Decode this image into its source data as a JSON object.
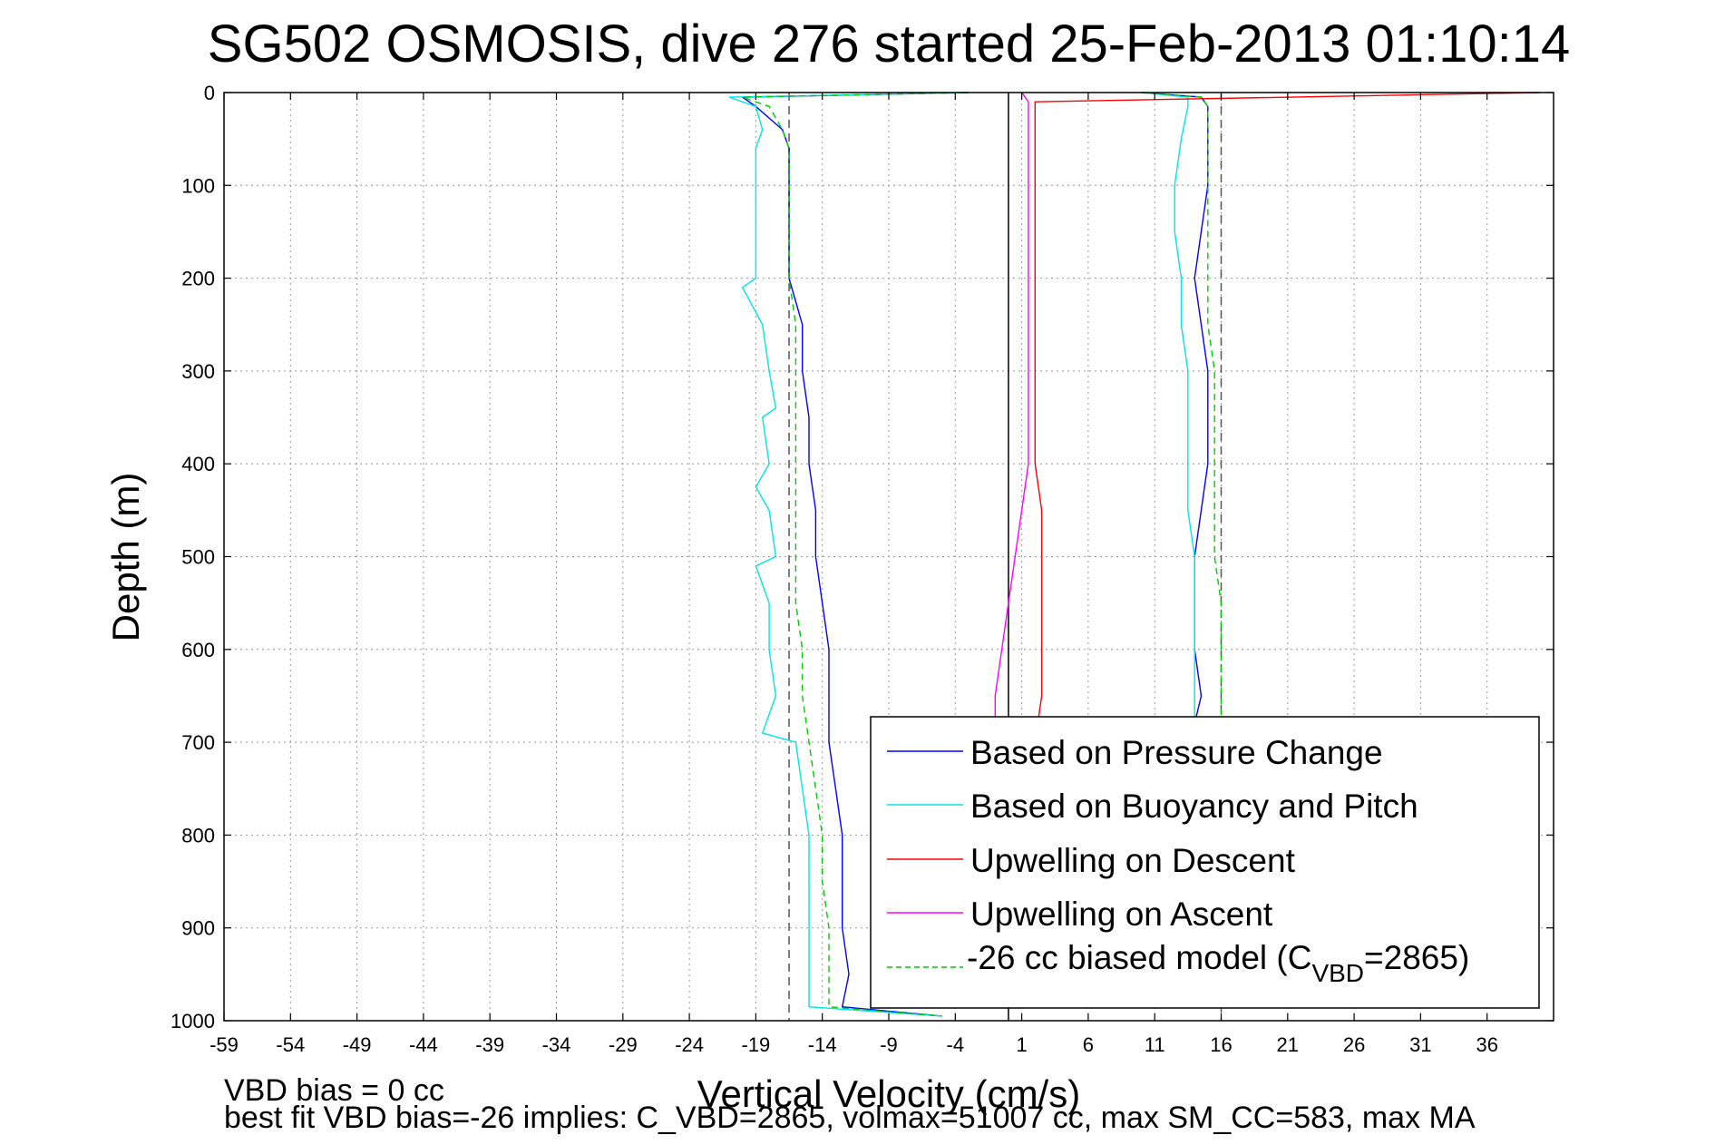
{
  "chart_data": {
    "type": "line",
    "title": "SG502 OSMOSIS, dive 276 started 25-Feb-2013 01:10:14",
    "xlabel": "Vertical Velocity (cm/s)",
    "ylabel": "Depth (m)",
    "xlim": [
      -59,
      41
    ],
    "ylim": [
      0,
      1000
    ],
    "y_reversed": true,
    "grid": true,
    "x_ticks": [
      -59,
      -54,
      -49,
      -44,
      -39,
      -34,
      -29,
      -24,
      -19,
      -14,
      -9,
      -4,
      1,
      6,
      11,
      16,
      21,
      26,
      31,
      36
    ],
    "y_ticks": [
      0,
      100,
      200,
      300,
      400,
      500,
      600,
      700,
      800,
      900,
      1000
    ],
    "reference_lines": [
      {
        "x": -16.5,
        "style": "dashed",
        "color": "#555555"
      },
      {
        "x": 0,
        "style": "solid",
        "color": "#000000"
      },
      {
        "x": 16,
        "style": "dashed",
        "color": "#555555"
      }
    ],
    "legend_position": "bottom-right",
    "legend_entries": [
      "Based on Pressure Change",
      "Based on Buoyancy and Pitch",
      "Upwelling on Descent",
      "Upwelling on Ascent",
      "-26 cc biased model (C_VBD=2865)"
    ],
    "series": [
      {
        "name": "Based on Pressure Change",
        "color": "#0000ff",
        "style": "solid",
        "branches": [
          {
            "depth": [
              0,
              5,
              15,
              40,
              60,
              100,
              150,
              200,
              250,
              300,
              350,
              400,
              450,
              500,
              550,
              600,
              650,
              700,
              750,
              800,
              850,
              900,
              950,
              985,
              995
            ],
            "velocity": [
              -3,
              -20,
              -19,
              -17,
              -16.5,
              -16.5,
              -16.5,
              -16.5,
              -15.5,
              -15.5,
              -15,
              -15,
              -14.5,
              -14.5,
              -14,
              -13.5,
              -13.5,
              -13.5,
              -13,
              -12.5,
              -12.5,
              -12.5,
              -12,
              -12.5,
              -5
            ]
          },
          {
            "depth": [
              0,
              5,
              15,
              40,
              60,
              100,
              150,
              200,
              250,
              300,
              350,
              400,
              450,
              500,
              550,
              600,
              650,
              680
            ],
            "velocity": [
              10,
              14.5,
              15,
              15,
              15,
              15,
              14.5,
              14,
              14.5,
              15,
              15,
              15,
              14.5,
              14,
              14,
              14,
              14.5,
              14
            ]
          }
        ]
      },
      {
        "name": "Based on Buoyancy and Pitch",
        "color": "#00e5e5",
        "style": "solid",
        "branches": [
          {
            "depth": [
              0,
              5,
              15,
              40,
              60,
              100,
              150,
              200,
              210,
              250,
              300,
              340,
              350,
              400,
              425,
              450,
              500,
              510,
              550,
              600,
              650,
              690,
              700,
              750,
              800,
              850,
              900,
              950,
              985,
              995
            ],
            "velocity": [
              -3,
              -21,
              -19,
              -18.5,
              -19,
              -19,
              -19,
              -19,
              -20,
              -18.5,
              -18,
              -17.5,
              -18.5,
              -18,
              -19,
              -18,
              -17.5,
              -19,
              -18,
              -18,
              -17.5,
              -18.5,
              -16,
              -15.5,
              -15,
              -15,
              -15,
              -15,
              -15,
              -5
            ]
          },
          {
            "depth": [
              0,
              5,
              15,
              50,
              100,
              150,
              200,
              250,
              300,
              350,
              400,
              450,
              500,
              550,
              600,
              650,
              680
            ],
            "velocity": [
              10,
              13.5,
              13.5,
              13,
              12.5,
              12.5,
              13,
              13,
              13.5,
              13.5,
              13.5,
              13.5,
              14,
              14,
              14,
              14,
              14
            ]
          }
        ]
      },
      {
        "name": "Upwelling on Descent",
        "color": "#ff0000",
        "style": "solid",
        "branches": [
          {
            "depth": [
              0,
              10,
              50,
              100,
              150,
              200,
              250,
              300,
              350,
              400,
              450,
              500,
              550,
              600,
              650,
              700
            ],
            "velocity": [
              40,
              2,
              2,
              2,
              2,
              2,
              2,
              2,
              2,
              2,
              2.5,
              2.5,
              2.5,
              2.5,
              2.5,
              2
            ]
          }
        ]
      },
      {
        "name": "Upwelling on Ascent",
        "color": "#ff00ff",
        "style": "solid",
        "branches": [
          {
            "depth": [
              0,
              10,
              50,
              100,
              150,
              200,
              250,
              300,
              350,
              400,
              450,
              500,
              550,
              600,
              650,
              680
            ],
            "velocity": [
              1,
              1.5,
              1.5,
              1.5,
              1.5,
              1.5,
              1.5,
              1.5,
              1.5,
              1.5,
              1,
              0.5,
              0,
              -0.5,
              -1,
              -1
            ]
          }
        ]
      },
      {
        "name": "-26 cc biased model (C_VBD=2865)",
        "color": "#00cc00",
        "style": "dashed",
        "branches": [
          {
            "depth": [
              0,
              5,
              15,
              40,
              60,
              100,
              150,
              200,
              250,
              300,
              350,
              400,
              450,
              500,
              550,
              600,
              650,
              700,
              750,
              800,
              850,
              900,
              950,
              985,
              995
            ],
            "velocity": [
              -3,
              -20,
              -18,
              -17,
              -16.5,
              -16.5,
              -16.5,
              -16.5,
              -16,
              -16,
              -16,
              -16,
              -16,
              -16,
              -16,
              -15.5,
              -15.5,
              -15,
              -14.5,
              -14,
              -14,
              -13.5,
              -13.5,
              -13.5,
              -5
            ]
          },
          {
            "depth": [
              0,
              5,
              15,
              50,
              100,
              150,
              200,
              250,
              300,
              350,
              400,
              450,
              500,
              550,
              600,
              650,
              680
            ],
            "velocity": [
              10,
              14.5,
              15,
              15,
              15,
              15,
              15,
              15,
              15.5,
              15.5,
              15.5,
              15.5,
              15.5,
              16,
              16,
              16,
              16
            ]
          }
        ]
      }
    ]
  },
  "legend": {
    "items": [
      "Based on Pressure Change",
      "Based on Buoyancy and Pitch",
      "Upwelling on Descent",
      "Upwelling on Ascent"
    ],
    "last_item_prefix": "-26 cc biased model (C",
    "last_item_subscript": "VBD",
    "last_item_suffix": "=2865)"
  },
  "footer": {
    "line1": "VBD bias = 0 cc",
    "line2": "best fit VBD bias=-26 implies: C_VBD=2865, volmax=51007 cc, max SM_CC=583, max MA"
  }
}
